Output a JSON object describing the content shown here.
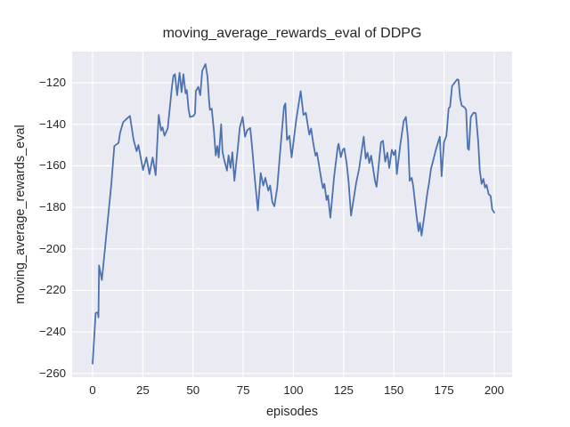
{
  "figure": {
    "background_color": "#ffffff"
  },
  "chart_data": {
    "type": "line",
    "title": "moving_average_rewards_eval of DDPG",
    "xlabel": "episodes",
    "ylabel": "moving_average_rewards_eval",
    "legend": null,
    "grid": true,
    "x_ticks": [
      0,
      25,
      50,
      75,
      100,
      125,
      150,
      175,
      200
    ],
    "y_ticks": [
      -120,
      -140,
      -160,
      -180,
      -200,
      -220,
      -240,
      -260
    ],
    "xlim": [
      -10.2,
      208.9
    ],
    "ylim": [
      -261.8,
      -105.0
    ],
    "style": {
      "axes_background": "#eaeaf2",
      "grid_color": "#ffffff",
      "line_color": "#4c72b0",
      "text_color": "#262626"
    },
    "series": [
      {
        "name": "moving_average_rewards_eval",
        "points": [
          [
            0,
            -255.3
          ],
          [
            1.5,
            -231
          ],
          [
            2.6,
            -230.5
          ],
          [
            2.9,
            -233
          ],
          [
            3.2,
            -208
          ],
          [
            4.6,
            -215
          ],
          [
            9.3,
            -169
          ],
          [
            10.8,
            -150.5
          ],
          [
            12.9,
            -149
          ],
          [
            13.7,
            -144
          ],
          [
            15.2,
            -139
          ],
          [
            16.8,
            -137.5
          ],
          [
            18.6,
            -136
          ],
          [
            20.4,
            -147.5
          ],
          [
            21.9,
            -153
          ],
          [
            22.8,
            -150
          ],
          [
            25.1,
            -162
          ],
          [
            26.8,
            -156
          ],
          [
            28.3,
            -164
          ],
          [
            29.9,
            -156
          ],
          [
            31.4,
            -164.5
          ],
          [
            32.9,
            -135.5
          ],
          [
            34.1,
            -143
          ],
          [
            34.8,
            -141.5
          ],
          [
            35.8,
            -145.5
          ],
          [
            37.4,
            -142
          ],
          [
            39.6,
            -121
          ],
          [
            40.3,
            -116.5
          ],
          [
            41,
            -115.9
          ],
          [
            42.1,
            -126
          ],
          [
            43.3,
            -115.2
          ],
          [
            44.3,
            -124.5
          ],
          [
            45.2,
            -115.9
          ],
          [
            46.3,
            -125.1
          ],
          [
            46.9,
            -123.5
          ],
          [
            47.8,
            -133
          ],
          [
            48.5,
            -136.5
          ],
          [
            50.2,
            -136
          ],
          [
            51,
            -134.8
          ],
          [
            51.4,
            -124
          ],
          [
            52.6,
            -122
          ],
          [
            53.6,
            -126
          ],
          [
            54.6,
            -114.2
          ],
          [
            56.2,
            -111
          ],
          [
            57.2,
            -117
          ],
          [
            57.9,
            -127.5
          ],
          [
            58.4,
            -133
          ],
          [
            59.3,
            -132.5
          ],
          [
            60.4,
            -143
          ],
          [
            61.3,
            -155
          ],
          [
            62.1,
            -150.5
          ],
          [
            62.8,
            -156
          ],
          [
            64,
            -140
          ],
          [
            64.7,
            -153.4
          ],
          [
            65.5,
            -157
          ],
          [
            66.9,
            -162.3
          ],
          [
            67.7,
            -155
          ],
          [
            68.7,
            -161
          ],
          [
            69.6,
            -153.5
          ],
          [
            70.6,
            -167.2
          ],
          [
            72.1,
            -153.5
          ],
          [
            73.3,
            -141.5
          ],
          [
            74.7,
            -136.5
          ],
          [
            75.9,
            -146
          ],
          [
            77,
            -142.8
          ],
          [
            78.5,
            -141.8
          ],
          [
            79.5,
            -152
          ],
          [
            80.8,
            -166.5
          ],
          [
            82.3,
            -181.5
          ],
          [
            83.7,
            -163.5
          ],
          [
            85,
            -169.5
          ],
          [
            86,
            -165.8
          ],
          [
            87.5,
            -172
          ],
          [
            88.4,
            -169.5
          ],
          [
            89.5,
            -177.5
          ],
          [
            90.5,
            -179.5
          ],
          [
            91.9,
            -170.8
          ],
          [
            93.5,
            -152
          ],
          [
            95.3,
            -131.5
          ],
          [
            96,
            -130
          ],
          [
            96.8,
            -147.5
          ],
          [
            98,
            -145.5
          ],
          [
            99.1,
            -156
          ],
          [
            101.3,
            -138.5
          ],
          [
            103.6,
            -124
          ],
          [
            105,
            -135.5
          ],
          [
            106.2,
            -134.5
          ],
          [
            107.9,
            -145
          ],
          [
            108.8,
            -142
          ],
          [
            109.8,
            -148.7
          ],
          [
            111,
            -155.1
          ],
          [
            111.7,
            -153.7
          ],
          [
            112.8,
            -160.1
          ],
          [
            114,
            -167.2
          ],
          [
            114.7,
            -170.8
          ],
          [
            115.4,
            -168.7
          ],
          [
            116.5,
            -176.5
          ],
          [
            117.2,
            -174.3
          ],
          [
            118.4,
            -185
          ],
          [
            120.2,
            -165.8
          ],
          [
            120.9,
            -160.1
          ],
          [
            122.1,
            -150.8
          ],
          [
            122.5,
            -149.4
          ],
          [
            123.6,
            -155.8
          ],
          [
            124.6,
            -152.3
          ],
          [
            125.3,
            -151.6
          ],
          [
            126.5,
            -158.7
          ],
          [
            127.5,
            -168
          ],
          [
            128.7,
            -184
          ],
          [
            131.2,
            -168.5
          ],
          [
            132.7,
            -161.5
          ],
          [
            135,
            -146
          ],
          [
            136,
            -156.5
          ],
          [
            136.9,
            -153.7
          ],
          [
            137.8,
            -158.7
          ],
          [
            138.7,
            -155.1
          ],
          [
            139.6,
            -160.8
          ],
          [
            140.6,
            -167.2
          ],
          [
            141.4,
            -170.1
          ],
          [
            143.6,
            -148.7
          ],
          [
            144.6,
            -148
          ],
          [
            145.7,
            -158
          ],
          [
            146.8,
            -153.7
          ],
          [
            147.7,
            -161
          ],
          [
            149,
            -152.3
          ],
          [
            150,
            -154.8
          ],
          [
            150.8,
            -152.5
          ],
          [
            151.5,
            -164
          ],
          [
            153.2,
            -150
          ],
          [
            154.9,
            -138.5
          ],
          [
            156,
            -136.5
          ],
          [
            157.1,
            -147.3
          ],
          [
            157.9,
            -167.2
          ],
          [
            158.9,
            -165.8
          ],
          [
            159.6,
            -169.4
          ],
          [
            161.3,
            -184
          ],
          [
            162.3,
            -191.5
          ],
          [
            163,
            -187.5
          ],
          [
            163.8,
            -193.6
          ],
          [
            165.2,
            -184
          ],
          [
            166.7,
            -173
          ],
          [
            167.5,
            -168.5
          ],
          [
            168.5,
            -161.5
          ],
          [
            169.7,
            -157
          ],
          [
            171,
            -152
          ],
          [
            172.9,
            -146
          ],
          [
            173.8,
            -165
          ],
          [
            175,
            -148.5
          ],
          [
            176.2,
            -145.5
          ],
          [
            177.3,
            -132.3
          ],
          [
            178,
            -131.6
          ],
          [
            179,
            -121.6
          ],
          [
            181.5,
            -118.4
          ],
          [
            182.2,
            -118.6
          ],
          [
            183,
            -127.3
          ],
          [
            183.8,
            -131
          ],
          [
            185.2,
            -131.8
          ],
          [
            186,
            -133
          ],
          [
            186.8,
            -151.6
          ],
          [
            187.4,
            -152.3
          ],
          [
            188.3,
            -136.6
          ],
          [
            189.7,
            -134.4
          ],
          [
            190.8,
            -134.6
          ],
          [
            192,
            -148
          ],
          [
            192.8,
            -162
          ],
          [
            193.7,
            -168.7
          ],
          [
            194.6,
            -166.3
          ],
          [
            195.4,
            -170.5
          ],
          [
            196.2,
            -169.2
          ],
          [
            197.2,
            -173.7
          ],
          [
            198.2,
            -174.5
          ],
          [
            199,
            -181
          ],
          [
            200,
            -182.5
          ]
        ]
      }
    ]
  }
}
